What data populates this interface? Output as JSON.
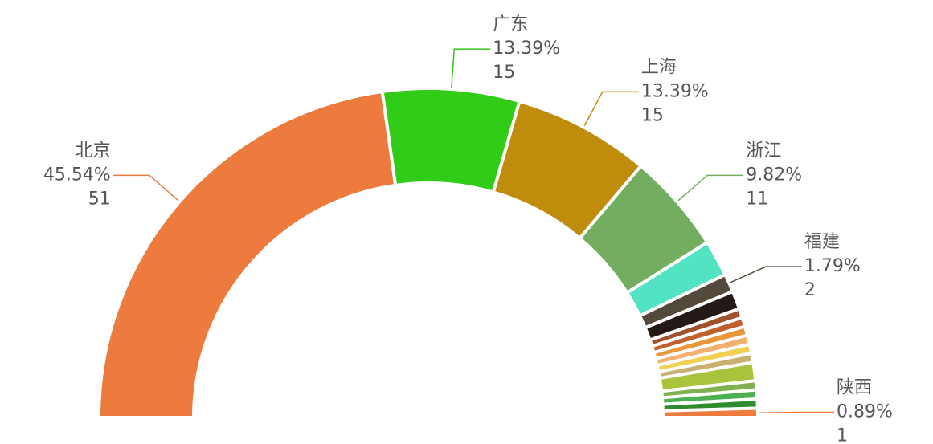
{
  "chart_data": {
    "type": "pie",
    "start_angle": 180,
    "end_angle": 0,
    "categories": [
      "北京",
      "广东",
      "上海",
      "浙江",
      null,
      "福建",
      null,
      null,
      null,
      null,
      null,
      null,
      null,
      null,
      null,
      null,
      null,
      "陕西"
    ],
    "values": [
      51,
      15,
      15,
      11,
      4,
      2,
      2,
      1,
      1,
      1,
      1,
      1,
      1,
      2,
      1,
      1,
      1,
      1
    ],
    "percent_labels": [
      "45.54%",
      "13.39%",
      "13.39%",
      "9.82%",
      null,
      "1.79%",
      null,
      null,
      null,
      null,
      null,
      null,
      null,
      null,
      null,
      null,
      null,
      "0.89%"
    ],
    "colors": [
      "#ed7b3e",
      "#31cc17",
      "#bf8c0c",
      "#72ad60",
      "#52e3c2",
      "#544a3b",
      "#231a18",
      "#a0522d",
      "#c0602a",
      "#e8963c",
      "#f2b070",
      "#f0d050",
      "#c8b070",
      "#a8c43c",
      "#80b050",
      "#4caf50",
      "#2e8b2e",
      "#ed7b3e"
    ]
  }
}
